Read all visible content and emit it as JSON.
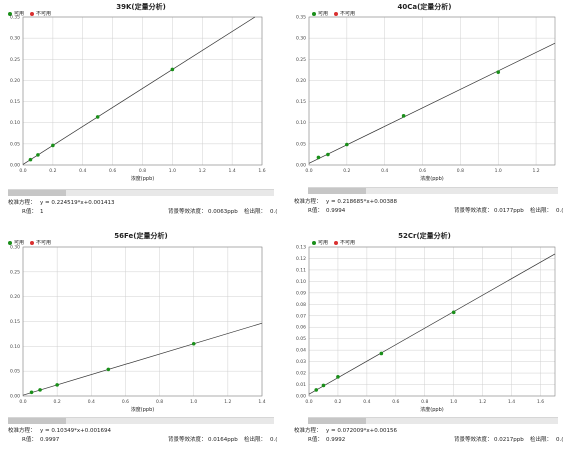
{
  "colors": {
    "available": "#1a8f1a",
    "unavailable": "#d93030",
    "line": "#333333",
    "grid": "#d0d0d0"
  },
  "labels": {
    "legend_available": "可用",
    "legend_unavailable": "不可用",
    "xlabel": "浓度(ppb)",
    "eq_label": "校准方程：",
    "r_label": "R值：",
    "bec_label": "背景等效浓度：",
    "dl_label": "检出限：",
    "dl_value": "0.("
  },
  "panels": [
    {
      "title": "39K(定量分析)",
      "equation": "y = 0.224519*x+0.001413",
      "r": "1",
      "bec": "0.0063ppb",
      "chart_data": {
        "type": "scatter",
        "x": [
          0.05,
          0.1,
          0.2,
          0.5,
          1.0
        ],
        "y": [
          0.0127,
          0.0238,
          0.0463,
          0.1137,
          0.2259
        ],
        "fit": {
          "slope": 0.224519,
          "intercept": 0.001413
        },
        "xlim": [
          0,
          1.6
        ],
        "ylim": [
          0,
          0.35
        ],
        "xticks": [
          "0.0",
          "0.2",
          "0.4",
          "0.6",
          "0.8",
          "1.0",
          "1.2",
          "1.4",
          "1.6"
        ],
        "yticks": [
          "0.00",
          "0.05",
          "0.10",
          "0.15",
          "0.20",
          "0.25",
          "0.30",
          "0.35"
        ],
        "grid": true
      }
    },
    {
      "title": "40Ca(定量分析)",
      "equation": "y = 0.218685*x+0.00388",
      "r": "0.9994",
      "bec": "0.0177ppb",
      "chart_data": {
        "type": "scatter",
        "x": [
          0.05,
          0.1,
          0.2,
          0.5,
          1.0
        ],
        "y": [
          0.0178,
          0.0247,
          0.0485,
          0.1163,
          0.2195
        ],
        "fit": {
          "slope": 0.218685,
          "intercept": 0.00388
        },
        "xlim": [
          0,
          1.3
        ],
        "ylim": [
          0,
          0.35
        ],
        "xticks": [
          "0.0",
          "0.2",
          "0.4",
          "0.6",
          "0.8",
          "1.0",
          "1.2"
        ],
        "yticks": [
          "0.00",
          "0.05",
          "0.10",
          "0.15",
          "0.20",
          "0.25",
          "0.30",
          "0.35"
        ],
        "grid": true
      }
    },
    {
      "title": "56Fe(定量分析)",
      "equation": "y = 0.10349*x+0.001694",
      "r": "0.9997",
      "bec": "0.0164ppb",
      "chart_data": {
        "type": "scatter",
        "x": [
          0.05,
          0.1,
          0.2,
          0.5,
          1.0
        ],
        "y": [
          0.0075,
          0.0123,
          0.0223,
          0.0535,
          0.1052
        ],
        "fit": {
          "slope": 0.10349,
          "intercept": 0.001694
        },
        "xlim": [
          0,
          1.4
        ],
        "ylim": [
          0,
          0.3
        ],
        "xticks": [
          "0.0",
          "0.2",
          "0.4",
          "0.6",
          "0.8",
          "1.0",
          "1.2",
          "1.4"
        ],
        "yticks": [
          "0.00",
          "0.05",
          "0.10",
          "0.15",
          "0.20",
          "0.25",
          "0.30"
        ],
        "grid": true
      }
    },
    {
      "title": "52Cr(定量分析)",
      "equation": "y = 0.072009*x+0.00156",
      "r": "0.9992",
      "bec": "0.0217ppb",
      "chart_data": {
        "type": "scatter",
        "x": [
          0.05,
          0.1,
          0.2,
          0.5,
          1.0
        ],
        "y": [
          0.0053,
          0.0092,
          0.0167,
          0.0371,
          0.073
        ],
        "fit": {
          "slope": 0.072009,
          "intercept": 0.00156
        },
        "xlim": [
          0,
          1.7
        ],
        "ylim": [
          0,
          0.13
        ],
        "xticks": [
          "0.0",
          "0.2",
          "0.4",
          "0.6",
          "0.8",
          "1.0",
          "1.2",
          "1.4",
          "1.6"
        ],
        "yticks": [
          "0.00",
          "0.01",
          "0.02",
          "0.03",
          "0.04",
          "0.05",
          "0.06",
          "0.07",
          "0.08",
          "0.09",
          "0.10",
          "0.11",
          "0.12",
          "0.13"
        ],
        "grid": true
      }
    }
  ]
}
